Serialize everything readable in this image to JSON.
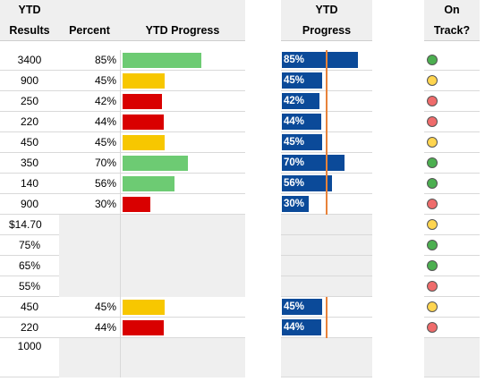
{
  "header": {
    "results_line1": "YTD",
    "results_line2": "Results",
    "percent": "Percent",
    "ytd_progress": "YTD Progress",
    "progress_line1": "YTD",
    "progress_line2": "Progress",
    "ontrack_line1": "On",
    "ontrack_line2": "Track?"
  },
  "colors": {
    "green": "#6dcb73",
    "yellow": "#f7c700",
    "red": "#d90000",
    "navy": "#0b4a99",
    "target": "#e8823a"
  },
  "target_percent": 0.6,
  "rows": [
    {
      "result": "3400",
      "percent": "85%",
      "pct": 0.85,
      "status": "green"
    },
    {
      "result": "900",
      "percent": "45%",
      "pct": 0.45,
      "status": "yellow"
    },
    {
      "result": "250",
      "percent": "42%",
      "pct": 0.42,
      "status": "red"
    },
    {
      "result": "220",
      "percent": "44%",
      "pct": 0.44,
      "status": "red"
    },
    {
      "result": "450",
      "percent": "45%",
      "pct": 0.45,
      "status": "yellow"
    },
    {
      "result": "350",
      "percent": "70%",
      "pct": 0.7,
      "status": "green"
    },
    {
      "result": "140",
      "percent": "56%",
      "pct": 0.56,
      "status": "green"
    },
    {
      "result": "900",
      "percent": "30%",
      "pct": 0.3,
      "status": "red"
    },
    {
      "result": "$14.70",
      "percent": "",
      "pct": null,
      "status": "yellow"
    },
    {
      "result": "75%",
      "percent": "",
      "pct": null,
      "status": "green"
    },
    {
      "result": "65%",
      "percent": "",
      "pct": null,
      "status": "green"
    },
    {
      "result": "55%",
      "percent": "",
      "pct": null,
      "status": "red"
    },
    {
      "result": "450",
      "percent": "45%",
      "pct": 0.45,
      "status": "yellow"
    },
    {
      "result": "220",
      "percent": "44%",
      "pct": 0.44,
      "status": "red"
    },
    {
      "result": "1000",
      "percent": "",
      "pct": null,
      "status": ""
    }
  ]
}
